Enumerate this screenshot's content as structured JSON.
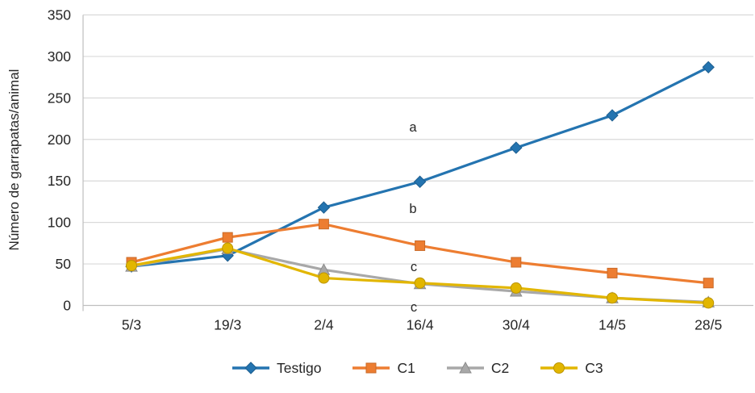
{
  "chart_data": {
    "type": "line",
    "title": "",
    "xlabel": "",
    "ylabel": "Número de garrapatas/animal",
    "ylim": [
      0,
      350
    ],
    "ytick_step": 50,
    "yticks": [
      0,
      50,
      100,
      150,
      200,
      250,
      300,
      350
    ],
    "grid": true,
    "legend_position": "bottom",
    "categories": [
      "5/3",
      "19/3",
      "2/4",
      "16/4",
      "30/4",
      "14/5",
      "28/5"
    ],
    "series": [
      {
        "name": "Testigo",
        "marker": "diamond",
        "color": "#2474B0",
        "marker_stroke": "#1D5E8F",
        "values": [
          47,
          60,
          118,
          149,
          190,
          229,
          287
        ]
      },
      {
        "name": "C1",
        "marker": "square",
        "color": "#ED7D31",
        "marker_stroke": "#C96A28",
        "values": [
          52,
          82,
          98,
          72,
          52,
          39,
          27
        ]
      },
      {
        "name": "C2",
        "marker": "triangle",
        "color": "#A8A8A8",
        "marker_stroke": "#8C8C8C",
        "values": [
          47,
          68,
          43,
          26,
          17,
          9,
          4
        ]
      },
      {
        "name": "C3",
        "marker": "circle",
        "color": "#E2B600",
        "marker_stroke": "#BC9500",
        "values": [
          48,
          69,
          33,
          27,
          21,
          9,
          3
        ]
      }
    ],
    "annotations": [
      {
        "text": "a",
        "x": 512,
        "y": 157
      },
      {
        "text": "b",
        "x": 512,
        "y": 258
      },
      {
        "text": "c",
        "x": 513,
        "y": 330
      },
      {
        "text": "c",
        "x": 513,
        "y": 380
      }
    ]
  },
  "colors": {
    "gridline": "#D9D9D9",
    "axis_line": "#BFBFBF",
    "tick_text": "#262626",
    "annotation_text": "#262626"
  }
}
